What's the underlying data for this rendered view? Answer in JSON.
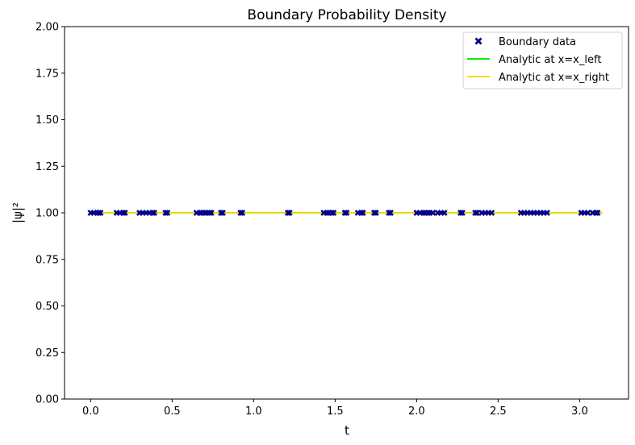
{
  "chart_data": {
    "type": "scatter",
    "title": "Boundary Probability Density",
    "xlabel": "t",
    "ylabel": "|ψ|²",
    "xlim": [
      -0.16,
      3.3
    ],
    "ylim": [
      0,
      2
    ],
    "xticks": [
      "0.0",
      "0.5",
      "1.0",
      "1.5",
      "2.0",
      "2.5",
      "3.0"
    ],
    "yticks": [
      "0.00",
      "0.25",
      "0.50",
      "0.75",
      "1.00",
      "1.25",
      "1.50",
      "1.75",
      "2.00"
    ],
    "grid": false,
    "legend_position": "top-right",
    "series": [
      {
        "name": "Boundary data",
        "kind": "scatter",
        "marker": "x-filled",
        "color": "#00008b",
        "x": [
          0.0,
          0.02,
          0.04,
          0.05,
          0.06,
          0.16,
          0.18,
          0.2,
          0.21,
          0.3,
          0.32,
          0.34,
          0.36,
          0.38,
          0.39,
          0.46,
          0.47,
          0.65,
          0.67,
          0.68,
          0.7,
          0.71,
          0.73,
          0.74,
          0.8,
          0.81,
          0.92,
          0.93,
          1.21,
          1.22,
          1.43,
          1.45,
          1.46,
          1.48,
          1.49,
          1.56,
          1.57,
          1.64,
          1.66,
          1.67,
          1.74,
          1.75,
          1.83,
          1.84,
          2.0,
          2.02,
          2.04,
          2.05,
          2.07,
          2.08,
          2.1,
          2.13,
          2.15,
          2.17,
          2.27,
          2.28,
          2.36,
          2.37,
          2.4,
          2.42,
          2.44,
          2.46,
          2.64,
          2.66,
          2.68,
          2.7,
          2.72,
          2.74,
          2.76,
          2.78,
          2.8,
          3.01,
          3.03,
          3.05,
          3.08,
          3.1,
          3.11
        ],
        "y": [
          1.0,
          1.0,
          1.0,
          1.0,
          1.0,
          1.0,
          1.0,
          1.0,
          1.0,
          1.0,
          1.0,
          1.0,
          1.0,
          1.0,
          1.0,
          1.0,
          1.0,
          1.0,
          1.0,
          1.0,
          1.0,
          1.0,
          1.0,
          1.0,
          1.0,
          1.0,
          1.0,
          1.0,
          1.0,
          1.0,
          1.0,
          1.0,
          1.0,
          1.0,
          1.0,
          1.0,
          1.0,
          1.0,
          1.0,
          1.0,
          1.0,
          1.0,
          1.0,
          1.0,
          1.0,
          1.0,
          1.0,
          1.0,
          1.0,
          1.0,
          1.0,
          1.0,
          1.0,
          1.0,
          1.0,
          1.0,
          1.0,
          1.0,
          1.0,
          1.0,
          1.0,
          1.0,
          1.0,
          1.0,
          1.0,
          1.0,
          1.0,
          1.0,
          1.0,
          1.0,
          1.0,
          1.0,
          1.0,
          1.0,
          1.0,
          1.0,
          1.0
        ]
      },
      {
        "name": "Analytic at x=x_left",
        "kind": "line",
        "color": "#00ee00",
        "x": [
          0.0,
          3.14
        ],
        "y": [
          1.0,
          1.0
        ]
      },
      {
        "name": "Analytic at x=x_right",
        "kind": "line",
        "color": "#ffd700",
        "x": [
          0.0,
          3.14
        ],
        "y": [
          1.0,
          1.0
        ]
      }
    ]
  }
}
